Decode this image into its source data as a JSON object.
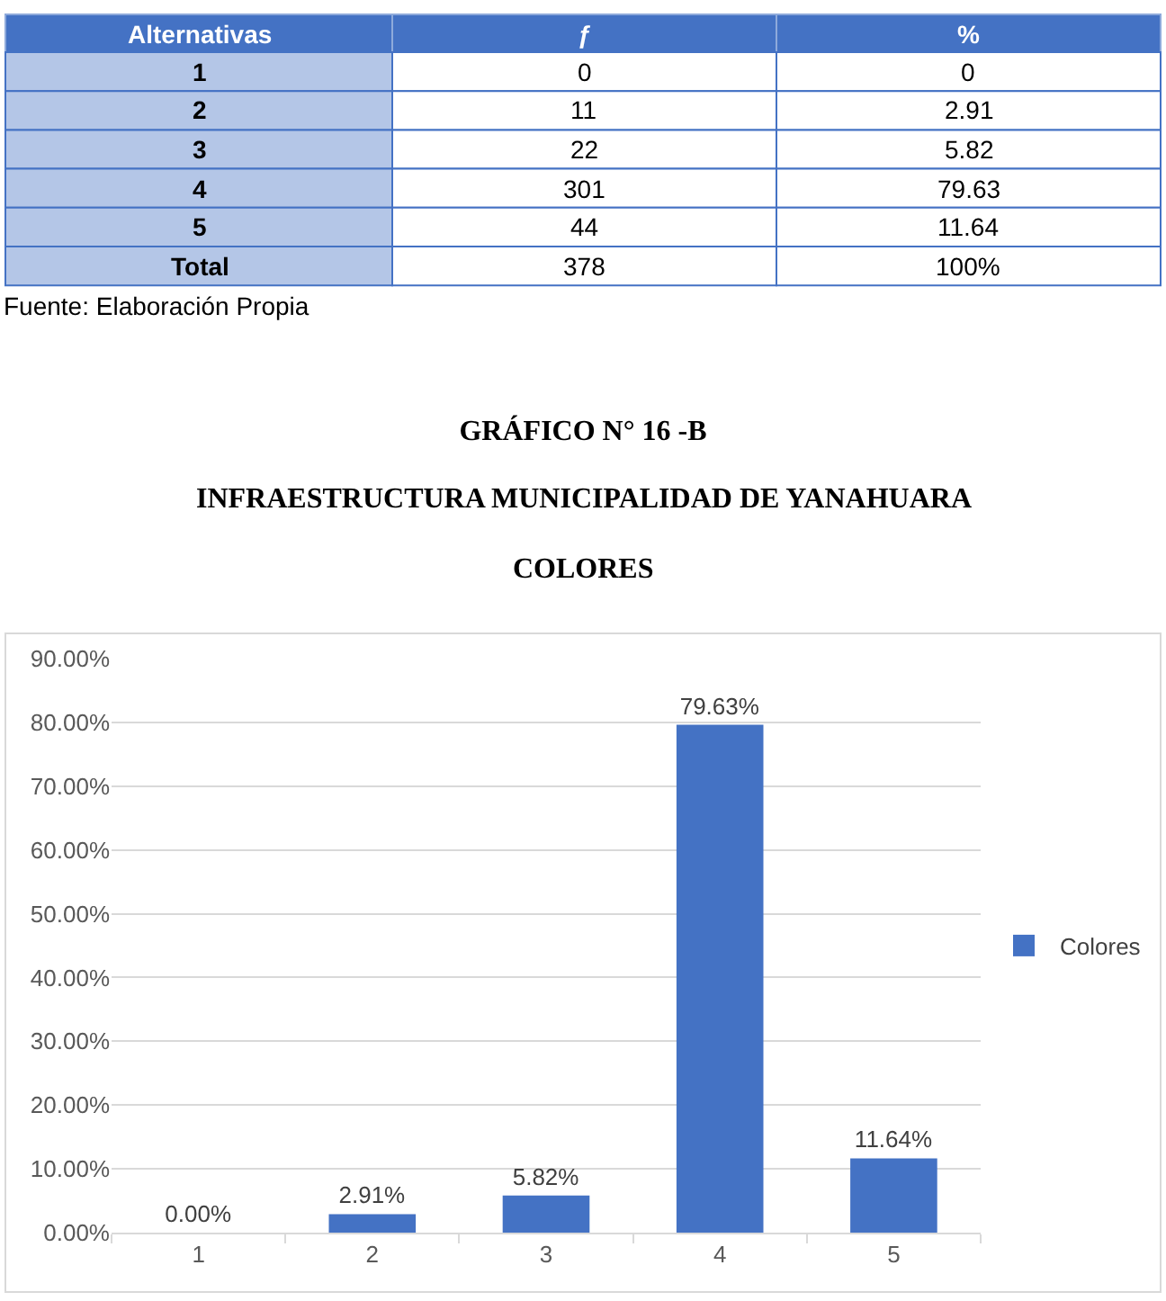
{
  "chart_data": [
    {
      "type": "heatmap",
      "ylabel": "Alternativas",
      "categories": [
        "ƒ",
        "%"
      ],
      "y_categories": [
        "1",
        "2",
        "3",
        "4",
        "5",
        "Total"
      ],
      "cells": [
        [
          null,
          null
        ],
        [
          null,
          null
        ],
        [
          null,
          null
        ],
        [
          null,
          null
        ],
        [
          null,
          null
        ],
        [
          null,
          null
        ]
      ],
      "cell_labels": [
        [
          "0",
          "0"
        ],
        [
          "11",
          "2.91"
        ],
        [
          "22",
          "5.82"
        ],
        [
          "301",
          "79.63"
        ],
        [
          "44",
          "11.64"
        ],
        [
          "378",
          "100%"
        ]
      ],
      "annotations": [
        "Fuente: Elaboración Propia"
      ]
    },
    {
      "type": "bar",
      "title": "GRÁFICO N° 16 -B",
      "subtitle": "INFRAESTRUCTURA MUNICIPALIDAD DE YANAHUARA\nCOLORES",
      "categories": [
        "1",
        "2",
        "3",
        "4",
        "5"
      ],
      "series": [
        {
          "name": "Colores",
          "color": "#4472c4",
          "values": [
            0,
            2.91,
            5.82,
            79.63,
            11.64
          ],
          "value_labels": [
            "0.00%",
            "2.91%",
            "5.82%",
            "79.63%",
            "11.64%"
          ]
        }
      ],
      "ylim": [
        0,
        90
      ],
      "yticks": [
        {
          "value": 0,
          "label": "0.00%"
        },
        {
          "value": 10,
          "label": "10.00%"
        },
        {
          "value": 20,
          "label": "20.00%"
        },
        {
          "value": 30,
          "label": "30.00%"
        },
        {
          "value": 40,
          "label": "40.00%"
        },
        {
          "value": 50,
          "label": "50.00%"
        },
        {
          "value": 60,
          "label": "60.00%"
        },
        {
          "value": 70,
          "label": "70.00%"
        },
        {
          "value": 80,
          "label": "80.00%"
        },
        {
          "value": 90,
          "label": "90.00%"
        }
      ],
      "grid": "y",
      "legend": "right"
    }
  ]
}
